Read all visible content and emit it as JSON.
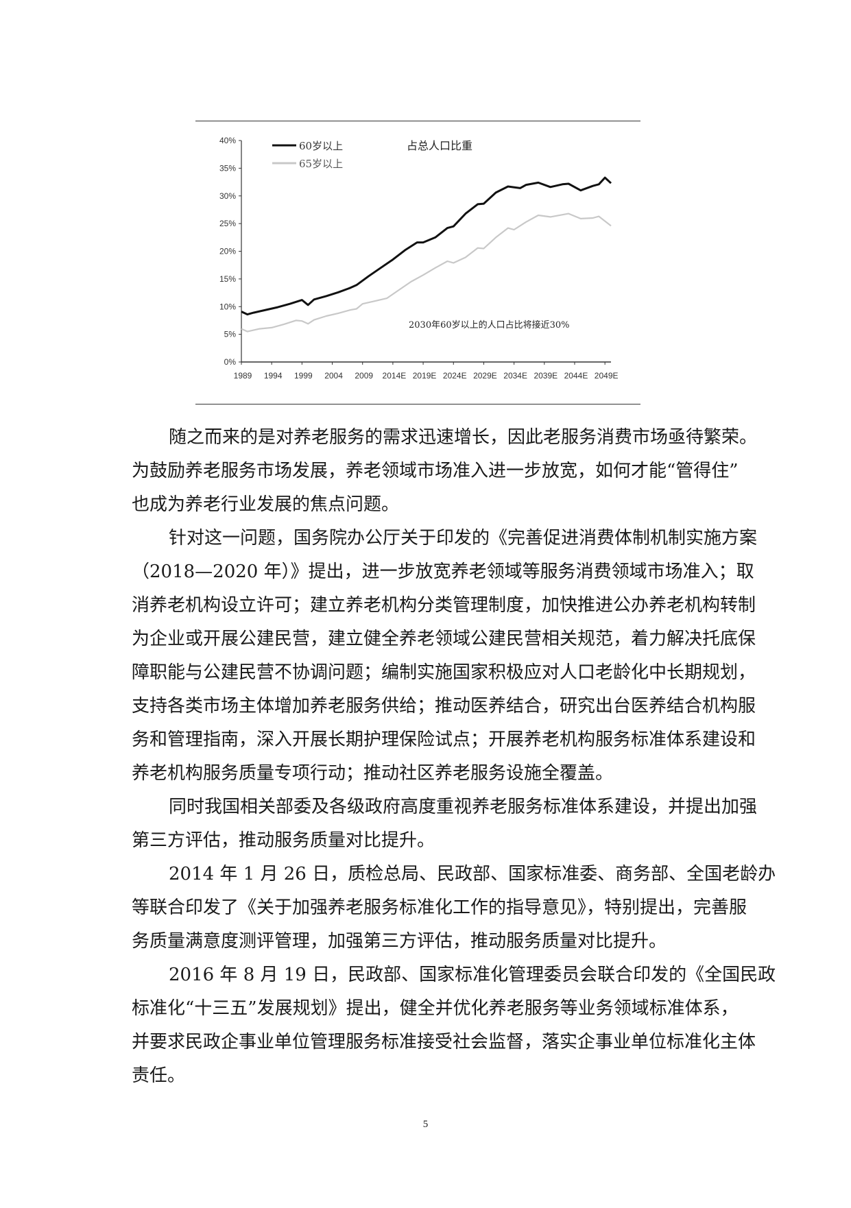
{
  "chart_data": {
    "type": "line",
    "title": "占总人口比重",
    "annotation": "2030年60岁以上的人口占比将接近30%",
    "xlabel": "",
    "ylabel": "",
    "ylim": [
      0,
      40
    ],
    "xlim": [
      1989,
      2050
    ],
    "y_ticks": [
      "0%",
      "5%",
      "10%",
      "15%",
      "20%",
      "25%",
      "30%",
      "35%",
      "40%"
    ],
    "x_ticks": [
      "1989",
      "1994",
      "1999",
      "2004",
      "2009",
      "2014E",
      "2019E",
      "2024E",
      "2029E",
      "2034E",
      "2039E",
      "2044E",
      "2049E"
    ],
    "grid": false,
    "legend": "top-left",
    "series": [
      {
        "name": "60岁以上",
        "color": "#111111",
        "x": [
          1989,
          1990,
          1991,
          1993,
          1995,
          1997,
          1999,
          2000,
          2001,
          2003,
          2005,
          2007,
          2008,
          2010,
          2012,
          2014,
          2016,
          2018,
          2019,
          2021,
          2023,
          2024,
          2026,
          2028,
          2029,
          2031,
          2033,
          2035,
          2036,
          2038,
          2040,
          2042,
          2043,
          2045,
          2047,
          2048,
          2049,
          2050
        ],
        "y": [
          9.1,
          8.6,
          8.9,
          9.4,
          9.9,
          10.5,
          11.2,
          10.3,
          11.3,
          11.9,
          12.6,
          13.4,
          13.9,
          15.5,
          17.0,
          18.5,
          20.2,
          21.6,
          21.6,
          22.5,
          24.2,
          24.5,
          26.8,
          28.5,
          28.6,
          30.6,
          31.7,
          31.4,
          32.0,
          32.4,
          31.6,
          32.1,
          32.2,
          31.0,
          31.8,
          32.1,
          33.3,
          32.3
        ]
      },
      {
        "name": "65岁以上",
        "color": "#c8c8c8",
        "x": [
          1989,
          1990,
          1992,
          1994,
          1996,
          1998,
          1999,
          2000,
          2001,
          2003,
          2005,
          2007,
          2008,
          2009,
          2011,
          2013,
          2015,
          2017,
          2019,
          2021,
          2023,
          2024,
          2026,
          2028,
          2029,
          2031,
          2033,
          2034,
          2036,
          2038,
          2040,
          2042,
          2043,
          2045,
          2047,
          2048,
          2050
        ],
        "y": [
          6.0,
          5.5,
          6.0,
          6.2,
          6.8,
          7.5,
          7.4,
          6.9,
          7.6,
          8.3,
          8.8,
          9.4,
          9.6,
          10.5,
          11.0,
          11.5,
          13.0,
          14.5,
          15.7,
          17.0,
          18.2,
          17.9,
          18.9,
          20.6,
          20.5,
          22.5,
          24.2,
          23.9,
          25.3,
          26.5,
          26.2,
          26.6,
          26.8,
          25.9,
          26.0,
          26.3,
          24.6
        ]
      }
    ]
  },
  "paragraphs": [
    [
      "随之而来的是对养老服务的需求迅速增长，因此老服务消费市场亟待繁荣。",
      "为鼓励养老服务市场发展，养老领域市场准入进一步放宽，如何才能“管得住”",
      "也成为养老行业发展的焦点问题。"
    ],
    [
      "针对这一问题，国务院办公厅关于印发的《完善促进消费体制机制实施方案",
      "（2018—2020 年）》提出，进一步放宽养老领域等服务消费领域市场准入；取",
      "消养老机构设立许可；建立养老机构分类管理制度，加快推进公办养老机构转制",
      "为企业或开展公建民营，建立健全养老领域公建民营相关规范，着力解决托底保",
      "障职能与公建民营不协调问题；编制实施国家积极应对人口老龄化中长期规划，",
      "支持各类市场主体增加养老服务供给；推动医养结合，研究出台医养结合机构服",
      "务和管理指南，深入开展长期护理保险试点；开展养老机构服务标准体系建设和",
      "养老机构服务质量专项行动；推动社区养老服务设施全覆盖。"
    ],
    [
      "同时我国相关部委及各级政府高度重视养老服务标准体系建设，并提出加强",
      "第三方评估，推动服务质量对比提升。"
    ],
    [
      "2014 年 1 月 26 日，质检总局、民政部、国家标准委、商务部、全国老龄办",
      "等联合印发了《关于加强养老服务标准化工作的指导意见》，特别提出，完善服",
      "务质量满意度测评管理，加强第三方评估，推动服务质量对比提升。"
    ],
    [
      "2016 年 8 月 19 日，民政部、国家标准化管理委员会联合印发的《全国民政",
      "标准化“十三五”发展规划》提出，健全并优化养老服务等业务领域标准体系，",
      "并要求民政企事业单位管理服务标准接受社会监督，落实企事业单位标准化主体",
      "责任。"
    ]
  ],
  "page_number": "5"
}
